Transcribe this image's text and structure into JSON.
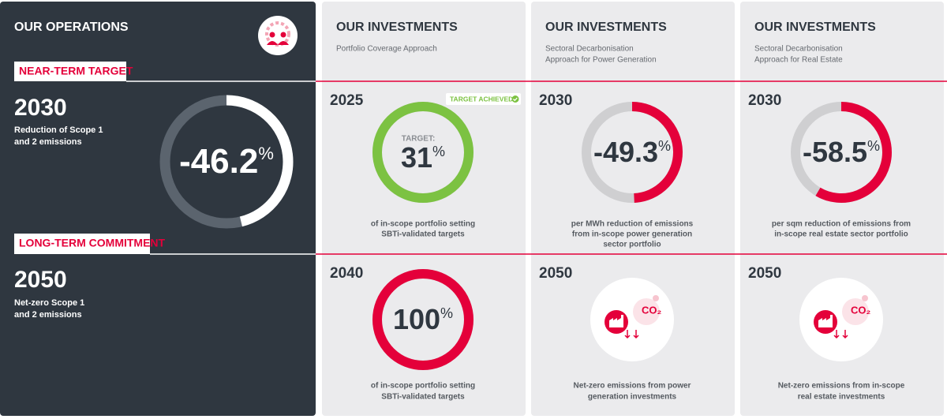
{
  "operations": {
    "title": "OUR OPERATIONS",
    "near_term": {
      "label": "NEAR-TERM TARGET",
      "year": "2030",
      "description": [
        "Reduction of Scope 1",
        "and 2 emissions"
      ],
      "value": -46.2,
      "unit": "%"
    },
    "long_term": {
      "label": "LONG-TERM COMMITMENT",
      "year": "2050",
      "description": [
        "Net-zero Scope 1",
        "and 2 emissions"
      ]
    }
  },
  "investments": [
    {
      "title": "OUR INVESTMENTS",
      "subtitle": [
        "Portfolio Coverage Approach"
      ],
      "near_term": {
        "year": "2025",
        "badge": "TARGET ACHIEVED",
        "ring_label": "TARGET:",
        "value": 31,
        "unit": "%",
        "color": "#7cc242",
        "achieved": true,
        "description": [
          "of in-scope portfolio setting",
          "SBTi-validated targets"
        ]
      },
      "long_term": {
        "year": "2040",
        "value": 100,
        "unit": "%",
        "color": "#e4003a",
        "description": [
          "of in-scope portfolio setting",
          "SBTi-validated targets"
        ]
      }
    },
    {
      "title": "OUR INVESTMENTS",
      "subtitle": [
        "Sectoral Decarbonisation",
        "Approach for Power Generation"
      ],
      "near_term": {
        "year": "2030",
        "value": -49.3,
        "unit": "%",
        "color": "#e4003a",
        "description": [
          "per MWh reduction of emissions",
          "from in-scope power generation",
          "sector portfolio"
        ]
      },
      "long_term": {
        "year": "2050",
        "icon_label": "CO₂",
        "description": [
          "Net-zero emissions from power",
          "generation investments"
        ]
      }
    },
    {
      "title": "OUR INVESTMENTS",
      "subtitle": [
        "Sectoral Decarbonisation",
        "Approach for Real Estate"
      ],
      "near_term": {
        "year": "2030",
        "value": -58.5,
        "unit": "%",
        "color": "#e4003a",
        "description": [
          "per sqm reduction of emissions from",
          "in-scope real estate sector portfolio"
        ]
      },
      "long_term": {
        "year": "2050",
        "icon_label": "CO₂",
        "description": [
          "Net-zero emissions from in-scope",
          "real estate investments"
        ]
      }
    }
  ]
}
